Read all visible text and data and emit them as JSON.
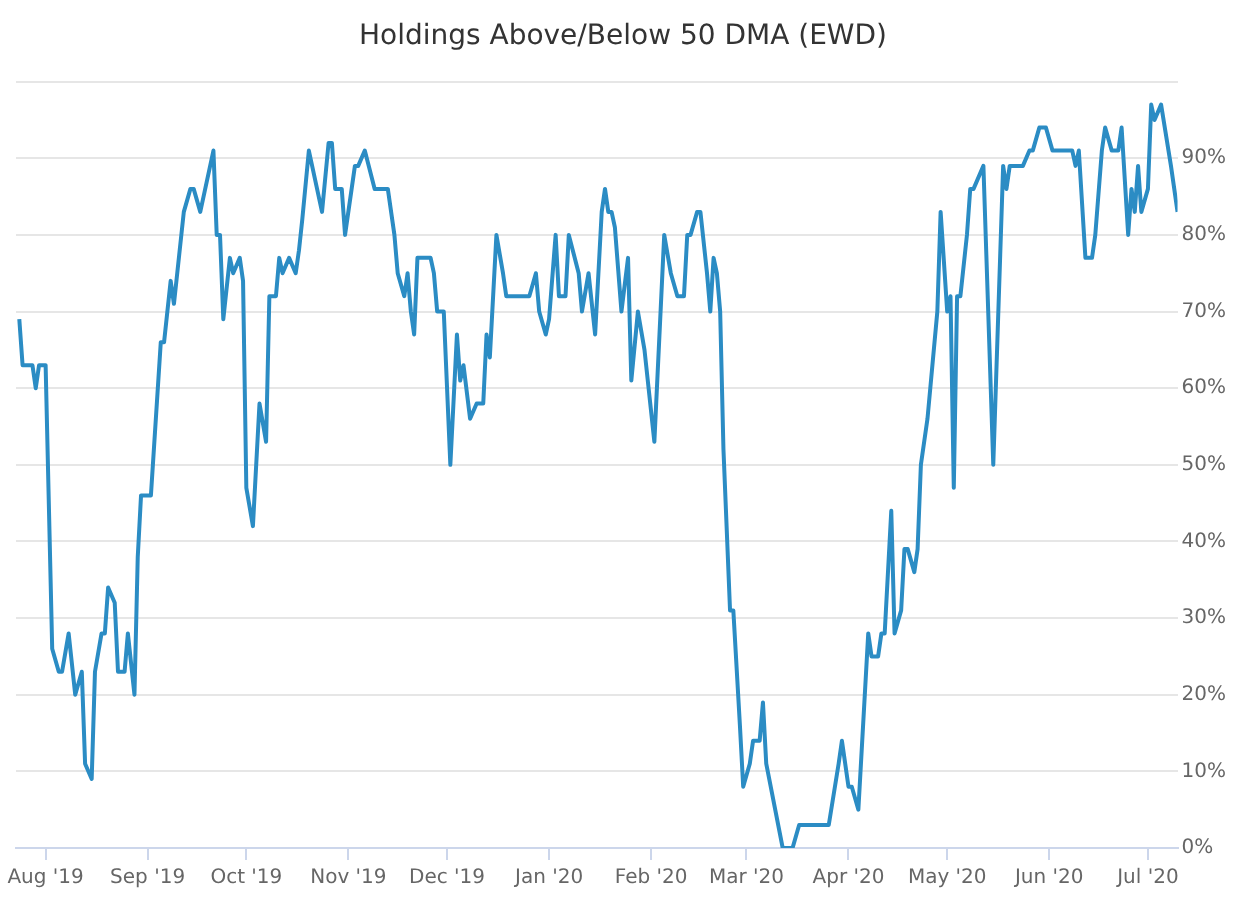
{
  "chart_data": {
    "type": "line",
    "title": "Holdings Above/Below 50 DMA (EWD)",
    "x": [
      "2019-07-24",
      "2019-07-25",
      "2019-07-28",
      "2019-07-29",
      "2019-07-30",
      "2019-08-01",
      "2019-08-03",
      "2019-08-05",
      "2019-08-06",
      "2019-08-08",
      "2019-08-10",
      "2019-08-12",
      "2019-08-13",
      "2019-08-15",
      "2019-08-16",
      "2019-08-18",
      "2019-08-19",
      "2019-08-20",
      "2019-08-22",
      "2019-08-23",
      "2019-08-25",
      "2019-08-26",
      "2019-08-28",
      "2019-08-29",
      "2019-08-30",
      "2019-09-02",
      "2019-09-05",
      "2019-09-06",
      "2019-09-08",
      "2019-09-09",
      "2019-09-12",
      "2019-09-14",
      "2019-09-15",
      "2019-09-17",
      "2019-09-21",
      "2019-09-22",
      "2019-09-23",
      "2019-09-24",
      "2019-09-26",
      "2019-09-27",
      "2019-09-29",
      "2019-09-30",
      "2019-10-01",
      "2019-10-03",
      "2019-10-05",
      "2019-10-07",
      "2019-10-08",
      "2019-10-10",
      "2019-10-11",
      "2019-10-12",
      "2019-10-14",
      "2019-10-16",
      "2019-10-17",
      "2019-10-18",
      "2019-10-20",
      "2019-10-24",
      "2019-10-26",
      "2019-10-27",
      "2019-10-28",
      "2019-10-30",
      "2019-10-31",
      "2019-11-02",
      "2019-11-03",
      "2019-11-04",
      "2019-11-06",
      "2019-11-09",
      "2019-11-13",
      "2019-11-15",
      "2019-11-16",
      "2019-11-18",
      "2019-11-19",
      "2019-11-20",
      "2019-11-21",
      "2019-11-22",
      "2019-11-26",
      "2019-11-27",
      "2019-11-28",
      "2019-11-30",
      "2019-12-02",
      "2019-12-04",
      "2019-12-05",
      "2019-12-06",
      "2019-12-08",
      "2019-12-10",
      "2019-12-12",
      "2019-12-13",
      "2019-12-14",
      "2019-12-16",
      "2019-12-18",
      "2019-12-19",
      "2019-12-26",
      "2019-12-28",
      "2019-12-29",
      "2019-12-31",
      "2020-01-01",
      "2020-01-03",
      "2020-01-04",
      "2020-01-06",
      "2020-01-07",
      "2020-01-10",
      "2020-01-11",
      "2020-01-13",
      "2020-01-15",
      "2020-01-17",
      "2020-01-18",
      "2020-01-19",
      "2020-01-20",
      "2020-01-21",
      "2020-01-23",
      "2020-01-25",
      "2020-01-26",
      "2020-01-28",
      "2020-01-30",
      "2020-02-02",
      "2020-02-05",
      "2020-02-07",
      "2020-02-09",
      "2020-02-11",
      "2020-02-12",
      "2020-02-13",
      "2020-02-15",
      "2020-02-16",
      "2020-02-18",
      "2020-02-19",
      "2020-02-20",
      "2020-02-21",
      "2020-02-22",
      "2020-02-23",
      "2020-02-25",
      "2020-02-26",
      "2020-02-28",
      "2020-02-29",
      "2020-03-02",
      "2020-03-03",
      "2020-03-05",
      "2020-03-06",
      "2020-03-07",
      "2020-03-12",
      "2020-03-15",
      "2020-03-17",
      "2020-03-26",
      "2020-03-29",
      "2020-03-30",
      "2020-04-01",
      "2020-04-02",
      "2020-04-04",
      "2020-04-07",
      "2020-04-08",
      "2020-04-10",
      "2020-04-11",
      "2020-04-12",
      "2020-04-14",
      "2020-04-15",
      "2020-04-17",
      "2020-04-18",
      "2020-04-19",
      "2020-04-21",
      "2020-04-22",
      "2020-04-23",
      "2020-04-25",
      "2020-04-28",
      "2020-04-29",
      "2020-05-01",
      "2020-05-02",
      "2020-05-03",
      "2020-05-04",
      "2020-05-05",
      "2020-05-07",
      "2020-05-08",
      "2020-05-09",
      "2020-05-12",
      "2020-05-15",
      "2020-05-18",
      "2020-05-19",
      "2020-05-20",
      "2020-05-24",
      "2020-05-26",
      "2020-05-27",
      "2020-05-29",
      "2020-05-31",
      "2020-06-02",
      "2020-06-08",
      "2020-06-09",
      "2020-06-10",
      "2020-06-12",
      "2020-06-14",
      "2020-06-15",
      "2020-06-17",
      "2020-06-18",
      "2020-06-20",
      "2020-06-22",
      "2020-06-23",
      "2020-06-25",
      "2020-06-26",
      "2020-06-27",
      "2020-06-28",
      "2020-06-29",
      "2020-07-01",
      "2020-07-02",
      "2020-07-03",
      "2020-07-05",
      "2020-07-08",
      "2020-07-09",
      "2020-07-10"
    ],
    "series": [
      {
        "color": "#2b8cc4",
        "values": [
          69,
          63,
          63,
          60,
          63,
          63,
          26,
          23,
          23,
          28,
          20,
          23,
          11,
          9,
          23,
          28,
          28,
          34,
          32,
          23,
          23,
          28,
          20,
          38,
          46,
          46,
          66,
          66,
          74,
          71,
          83,
          86,
          86,
          83,
          91,
          80,
          80,
          69,
          77,
          75,
          77,
          74,
          47,
          42,
          58,
          53,
          72,
          72,
          77,
          75,
          77,
          75,
          78,
          82,
          91,
          83,
          92,
          92,
          86,
          86,
          80,
          86,
          89,
          89,
          91,
          86,
          86,
          80,
          75,
          72,
          75,
          70,
          67,
          77,
          77,
          75,
          70,
          70,
          50,
          67,
          61,
          63,
          56,
          58,
          58,
          67,
          64,
          80,
          75,
          72,
          72,
          75,
          70,
          67,
          69,
          80,
          72,
          72,
          80,
          75,
          70,
          75,
          67,
          83,
          86,
          83,
          83,
          81,
          70,
          77,
          61,
          70,
          65,
          53,
          80,
          75,
          72,
          72,
          80,
          80,
          83,
          83,
          75,
          70,
          77,
          75,
          70,
          52,
          31,
          31,
          16,
          8,
          11,
          14,
          14,
          19,
          11,
          0,
          0,
          3,
          3,
          11,
          14,
          8,
          8,
          5,
          28,
          25,
          25,
          28,
          28,
          44,
          28,
          31,
          39,
          39,
          36,
          39,
          50,
          56,
          70,
          83,
          70,
          72,
          47,
          72,
          72,
          80,
          86,
          86,
          89,
          50,
          89,
          86,
          89,
          89,
          91,
          91,
          94,
          94,
          91,
          91,
          89,
          91,
          77,
          77,
          80,
          91,
          94,
          91,
          91,
          94,
          80,
          86,
          83,
          89,
          83,
          86,
          97,
          95,
          97,
          89,
          86,
          83
        ]
      }
    ],
    "xlim": [
      "2019-07-23",
      "2020-07-10"
    ],
    "xticks": [
      {
        "value": "2019-08-01",
        "label": "Aug '19"
      },
      {
        "value": "2019-09-01",
        "label": "Sep '19"
      },
      {
        "value": "2019-10-01",
        "label": "Oct '19"
      },
      {
        "value": "2019-11-01",
        "label": "Nov '19"
      },
      {
        "value": "2019-12-01",
        "label": "Dec '19"
      },
      {
        "value": "2020-01-01",
        "label": "Jan '20"
      },
      {
        "value": "2020-02-01",
        "label": "Feb '20"
      },
      {
        "value": "2020-03-01",
        "label": "Mar '20"
      },
      {
        "value": "2020-04-01",
        "label": "Apr '20"
      },
      {
        "value": "2020-05-01",
        "label": "May '20"
      },
      {
        "value": "2020-06-01",
        "label": "Jun '20"
      },
      {
        "value": "2020-07-01",
        "label": "Jul '20"
      }
    ],
    "ylim": [
      0,
      100
    ],
    "yticks": [
      {
        "value": 0,
        "label": "0%"
      },
      {
        "value": 10,
        "label": "10%"
      },
      {
        "value": 20,
        "label": "20%"
      },
      {
        "value": 30,
        "label": "30%"
      },
      {
        "value": 40,
        "label": "40%"
      },
      {
        "value": 50,
        "label": "50%"
      },
      {
        "value": 60,
        "label": "60%"
      },
      {
        "value": 70,
        "label": "70%"
      },
      {
        "value": 80,
        "label": "80%"
      },
      {
        "value": 90,
        "label": "90%"
      },
      {
        "value": 100,
        "label": null
      }
    ],
    "grid": "y",
    "legend": false,
    "marker": "none",
    "line_style": "solid"
  }
}
